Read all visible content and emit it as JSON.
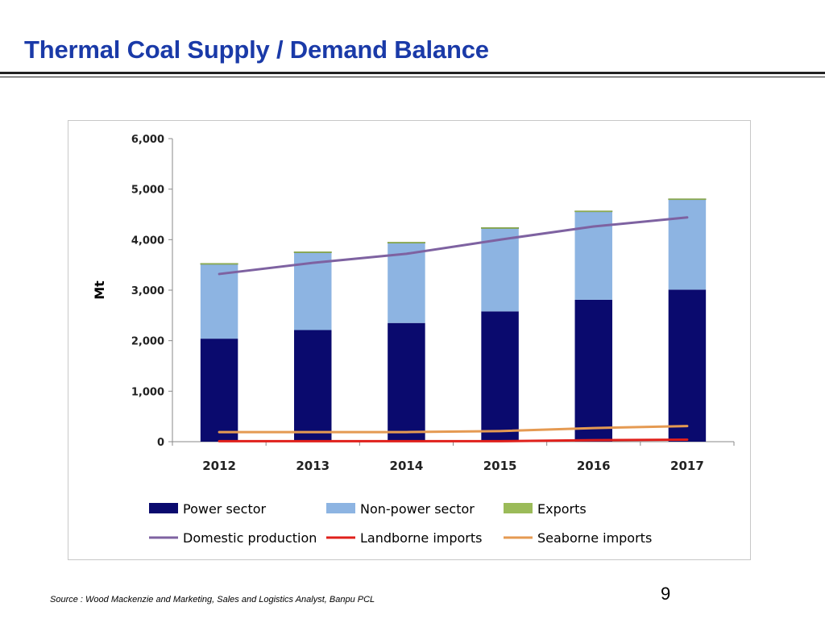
{
  "slide": {
    "title": "Thermal Coal Supply / Demand Balance",
    "source": "Source : Wood Mackenzie and Marketing, Sales and Logistics Analyst, Banpu PCL",
    "page_number": "9"
  },
  "chart_data": {
    "type": "bar",
    "stacked": true,
    "title": "",
    "xlabel": "",
    "ylabel": "Mt",
    "ylim": [
      0,
      6000
    ],
    "yticks": [
      0,
      1000,
      2000,
      3000,
      4000,
      5000,
      6000
    ],
    "ytick_labels": [
      "0",
      "1,000",
      "2,000",
      "3,000",
      "4,000",
      "5,000",
      "6,000"
    ],
    "categories": [
      "2012",
      "2013",
      "2014",
      "2015",
      "2016",
      "2017"
    ],
    "grid": false,
    "legend_position": "bottom",
    "series": [
      {
        "name": "Power sector",
        "kind": "bar",
        "color": "#0a0a6e",
        "values": [
          2040,
          2210,
          2350,
          2580,
          2810,
          3010
        ]
      },
      {
        "name": "Non-power sector",
        "kind": "bar",
        "color": "#8db4e2",
        "values": [
          1470,
          1530,
          1580,
          1640,
          1740,
          1780
        ]
      },
      {
        "name": "Exports",
        "kind": "bar",
        "color": "#9bbb59",
        "values": [
          20,
          20,
          20,
          20,
          20,
          20
        ]
      },
      {
        "name": "Domestic production",
        "kind": "line",
        "color": "#7e62a1",
        "values": [
          3320,
          3540,
          3720,
          4000,
          4260,
          4440
        ]
      },
      {
        "name": "Landborne imports",
        "kind": "line",
        "color": "#e0201b",
        "values": [
          10,
          10,
          10,
          10,
          30,
          40
        ]
      },
      {
        "name": "Seaborne imports",
        "kind": "line",
        "color": "#e59a52",
        "values": [
          190,
          190,
          190,
          210,
          270,
          310
        ]
      }
    ]
  }
}
